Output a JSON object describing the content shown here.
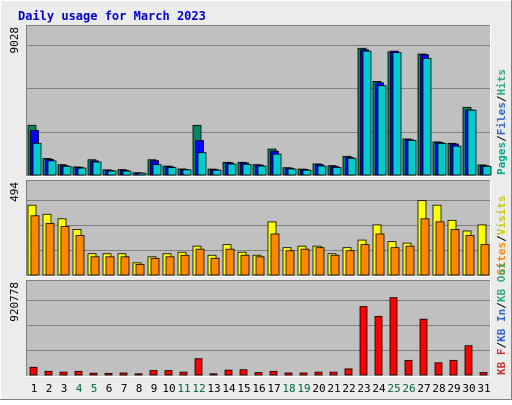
{
  "colors": {
    "background": "#ececec",
    "panel_bg": "#c0c0c0",
    "gridline": "#808080",
    "title": "#0000cc",
    "pages": "#00aa88",
    "files": "#3366cc",
    "hits": "#33aa77",
    "kb_out": "#cc3333",
    "kb_in": "#3366cc",
    "kb_f": "#33aa77",
    "weekend_tick": "#006633",
    "weekday_tick": "#000000"
  },
  "chart_data": [
    {
      "type": "bar",
      "title": "Daily usage for March 2023",
      "panel": "hits-files-pages",
      "ymax_label": "9028",
      "ymax": 9028,
      "grid": true,
      "legend": [
        {
          "name": "Pages",
          "color": "#00cccc",
          "text_color": "#00aa88"
        },
        {
          "name": "Files",
          "color": "#0000ff",
          "text_color": "#3366cc"
        },
        {
          "name": "Hits",
          "color": "#008866",
          "text_color": "#33aa77"
        }
      ],
      "categories": [
        "1",
        "2",
        "3",
        "4",
        "5",
        "6",
        "7",
        "8",
        "9",
        "10",
        "11",
        "12",
        "13",
        "14",
        "15",
        "16",
        "17",
        "18",
        "19",
        "20",
        "21",
        "22",
        "23",
        "24",
        "25",
        "26",
        "27",
        "28",
        "29",
        "30",
        "31"
      ],
      "series": [
        {
          "name": "Hits",
          "color": "#008866",
          "values": [
            3450,
            1150,
            720,
            560,
            1060,
            360,
            380,
            160,
            1060,
            620,
            420,
            3450,
            410,
            880,
            880,
            720,
            1800,
            510,
            410,
            770,
            650,
            1300,
            8800,
            6500,
            8550,
            2500,
            8400,
            2300,
            2200,
            4700,
            700
          ]
        },
        {
          "name": "Files",
          "color": "#0000ff",
          "values": [
            3100,
            1080,
            650,
            520,
            980,
            320,
            330,
            140,
            1000,
            580,
            380,
            2400,
            380,
            840,
            840,
            680,
            1650,
            470,
            380,
            720,
            590,
            1220,
            8700,
            6400,
            8600,
            2450,
            8350,
            2250,
            2150,
            4520,
            650
          ]
        },
        {
          "name": "Pages",
          "color": "#00cccc",
          "values": [
            2200,
            980,
            600,
            480,
            900,
            280,
            270,
            120,
            720,
            520,
            360,
            1550,
            330,
            760,
            740,
            620,
            1450,
            420,
            330,
            620,
            530,
            1160,
            8600,
            6200,
            8500,
            2400,
            8100,
            2200,
            2000,
            4500,
            600
          ]
        }
      ]
    },
    {
      "type": "bar",
      "panel": "visits-sites",
      "ymax_label": "494",
      "ymax": 494,
      "grid": true,
      "legend": [
        {
          "name": "Sites",
          "color": "#ff8800",
          "text_color": "#ff8800"
        },
        {
          "name": "Visits",
          "color": "#ffff00",
          "text_color": "#cccc00"
        }
      ],
      "categories": [
        "1",
        "2",
        "3",
        "4",
        "5",
        "6",
        "7",
        "8",
        "9",
        "10",
        "11",
        "12",
        "13",
        "14",
        "15",
        "16",
        "17",
        "18",
        "19",
        "20",
        "21",
        "22",
        "23",
        "24",
        "25",
        "26",
        "27",
        "28",
        "29",
        "30",
        "31"
      ],
      "series": [
        {
          "name": "Visits",
          "color": "#ffff00",
          "values": [
            460,
            400,
            370,
            300,
            140,
            140,
            140,
            80,
            120,
            140,
            150,
            190,
            130,
            200,
            150,
            130,
            350,
            180,
            190,
            190,
            140,
            180,
            230,
            330,
            220,
            210,
            490,
            460,
            360,
            290,
            330
          ]
        },
        {
          "name": "Sites",
          "color": "#ff8800",
          "values": [
            390,
            340,
            320,
            260,
            120,
            120,
            120,
            70,
            110,
            120,
            130,
            170,
            110,
            170,
            130,
            120,
            270,
            160,
            170,
            180,
            130,
            160,
            200,
            270,
            180,
            190,
            370,
            350,
            300,
            260,
            200
          ]
        }
      ]
    },
    {
      "type": "bar",
      "panel": "kbytes",
      "ymax_label": "920778",
      "ymax": 920778,
      "grid": true,
      "legend": [
        {
          "name": "KB F",
          "color": "#ff0000",
          "text_color": "#cc3333"
        },
        {
          "name": "KB In",
          "color": "#3366cc",
          "text_color": "#3366cc"
        },
        {
          "name": "KB Out",
          "color": "#33aa77",
          "text_color": "#33aa77"
        }
      ],
      "categories": [
        "1",
        "2",
        "3",
        "4",
        "5",
        "6",
        "7",
        "8",
        "9",
        "10",
        "11",
        "12",
        "13",
        "14",
        "15",
        "16",
        "17",
        "18",
        "19",
        "20",
        "21",
        "22",
        "23",
        "24",
        "25",
        "26",
        "27",
        "28",
        "29",
        "30",
        "31"
      ],
      "series": [
        {
          "name": "KB F",
          "color": "#ff0000",
          "values": [
            95000,
            45000,
            35000,
            45000,
            22000,
            20000,
            25000,
            15000,
            55000,
            55000,
            35000,
            200000,
            15000,
            60000,
            65000,
            30000,
            45000,
            25000,
            25000,
            35000,
            35000,
            75000,
            840000,
            720000,
            950000,
            180000,
            685000,
            150000,
            180000,
            360000,
            30000
          ]
        }
      ]
    }
  ],
  "x_axis": {
    "labels": [
      "1",
      "2",
      "3",
      "4",
      "5",
      "6",
      "7",
      "8",
      "9",
      "10",
      "11",
      "12",
      "13",
      "14",
      "15",
      "16",
      "17",
      "18",
      "19",
      "20",
      "21",
      "22",
      "23",
      "24",
      "25",
      "26",
      "27",
      "28",
      "29",
      "30",
      "31"
    ],
    "weekend_days": [
      "4",
      "5",
      "11",
      "12",
      "18",
      "19",
      "25",
      "26"
    ]
  },
  "separators": {
    "slash": "/"
  }
}
